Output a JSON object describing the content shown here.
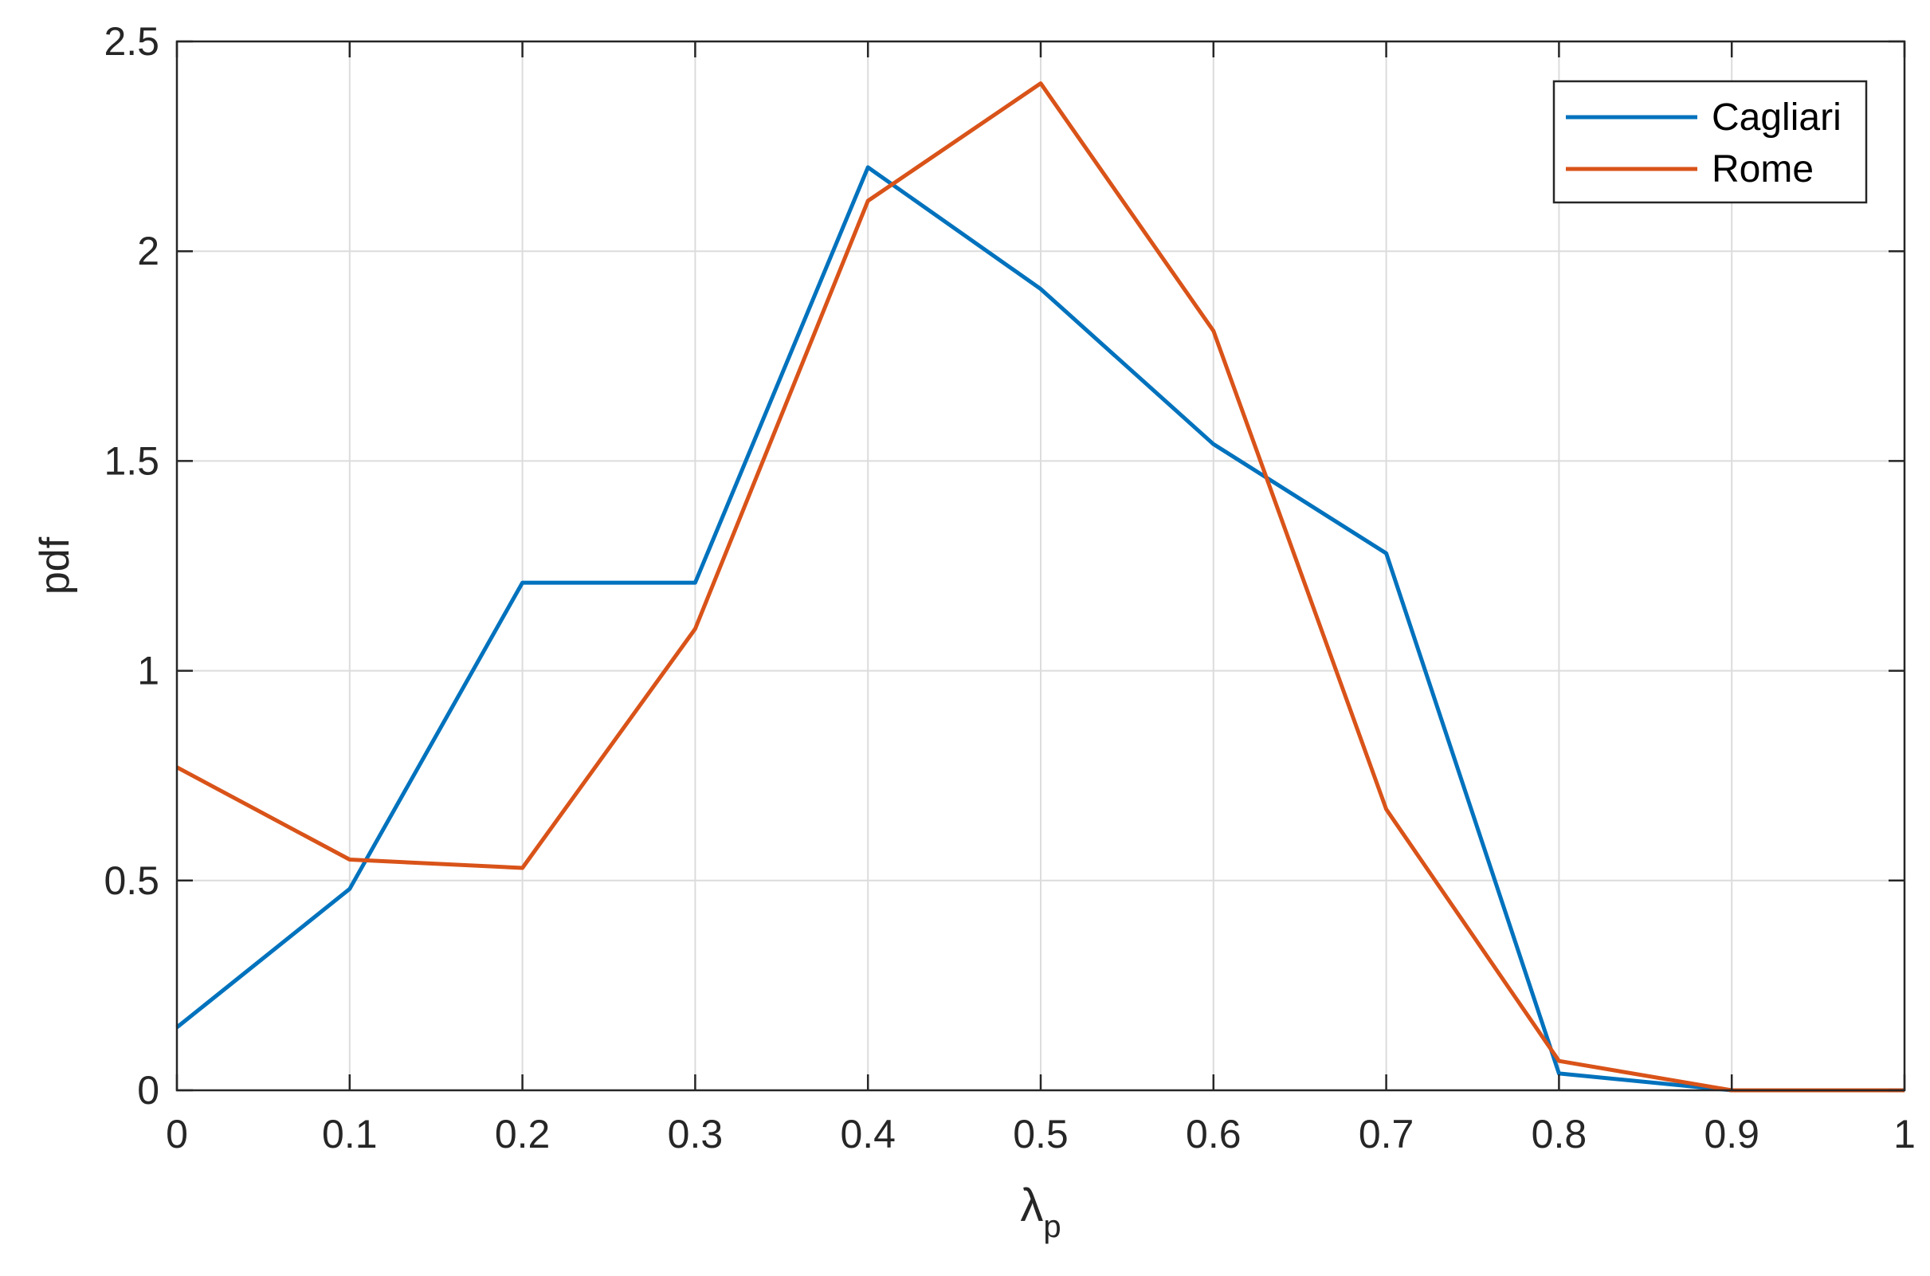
{
  "chart_data": {
    "type": "line",
    "x": [
      0,
      0.1,
      0.2,
      0.3,
      0.4,
      0.5,
      0.6,
      0.7,
      0.8,
      0.9,
      1.0
    ],
    "series": [
      {
        "name": "Cagliari",
        "color": "#0072BD",
        "values": [
          0.15,
          0.48,
          1.21,
          1.21,
          2.2,
          1.91,
          1.54,
          1.28,
          0.04,
          0.0,
          0.0
        ]
      },
      {
        "name": "Rome",
        "color": "#D95319",
        "values": [
          0.77,
          0.55,
          0.53,
          1.1,
          2.12,
          2.4,
          1.81,
          0.67,
          0.07,
          0.0,
          0.0
        ]
      }
    ],
    "xlabel": "λ",
    "xlabel_subscript": "p",
    "ylabel": "pdf",
    "xlim": [
      0,
      1
    ],
    "ylim": [
      0,
      2.5
    ],
    "xticks": [
      "0",
      "0.1",
      "0.2",
      "0.3",
      "0.4",
      "0.5",
      "0.6",
      "0.7",
      "0.8",
      "0.9",
      "1"
    ],
    "yticks": [
      "0",
      "0.5",
      "1",
      "1.5",
      "2",
      "2.5"
    ],
    "grid": true,
    "legend_position": "top-right"
  }
}
